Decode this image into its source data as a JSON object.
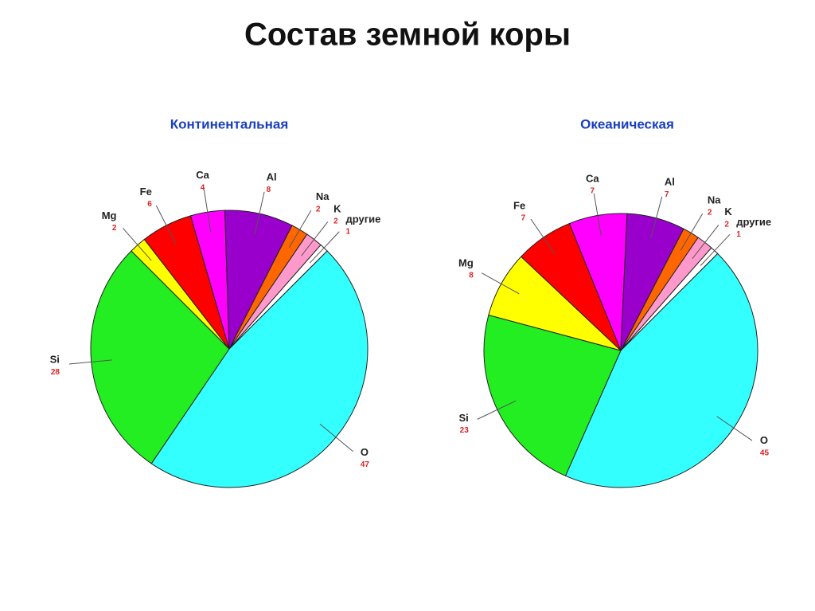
{
  "title": "Состав земной коры",
  "chart_data": [
    {
      "type": "pie",
      "title": "Континентальная",
      "categories": [
        "O",
        "Si",
        "Mg",
        "Fe",
        "Ca",
        "Al",
        "Na",
        "K",
        "другие"
      ],
      "values": [
        47,
        28,
        2,
        6,
        4,
        8,
        2,
        2,
        1
      ],
      "colors": [
        "#33ffff",
        "#22ee22",
        "#ffff00",
        "#ff0000",
        "#ff00ff",
        "#9900cc",
        "#ff6600",
        "#ff99cc",
        "#ffffff"
      ]
    },
    {
      "type": "pie",
      "title": "Океаническая",
      "categories": [
        "O",
        "Si",
        "Mg",
        "Fe",
        "Ca",
        "Al",
        "Na",
        "K",
        "другие"
      ],
      "values": [
        45,
        23,
        8,
        7,
        7,
        7,
        2,
        2,
        1
      ],
      "colors": [
        "#33ffff",
        "#22ee22",
        "#ffff00",
        "#ff0000",
        "#ff00ff",
        "#9900cc",
        "#ff6600",
        "#ff99cc",
        "#ffffff"
      ]
    }
  ]
}
